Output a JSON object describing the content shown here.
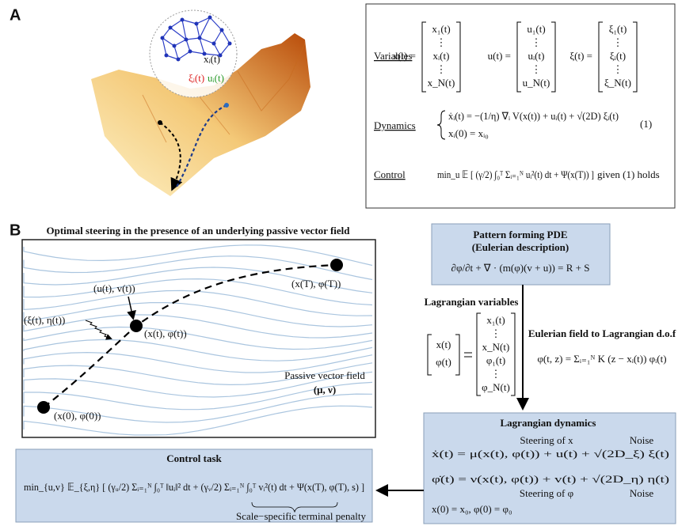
{
  "panel_a": {
    "label": "A",
    "inset": {
      "node": "xᵢ(t)",
      "noise": "ξᵢ(t)",
      "control": "uᵢ(t)"
    },
    "variables_label": "Variables",
    "vectors": [
      {
        "lhs": "x(t) =",
        "entries": [
          "x₁(t)",
          "⋮",
          "xᵢ(t)",
          "⋮",
          "x_N(t)"
        ]
      },
      {
        "lhs": "u(t) =",
        "entries": [
          "u₁(t)",
          "⋮",
          "uᵢ(t)",
          "⋮",
          "u_N(t)"
        ]
      },
      {
        "lhs": "ξ(t) =",
        "entries": [
          "ξ₁(t)",
          "⋮",
          "ξᵢ(t)",
          "⋮",
          "ξ_N(t)"
        ]
      }
    ],
    "dynamics_label": "Dynamics",
    "dynamics": [
      "ẋᵢ(t) = −(1/η) ∇ᵢ V(x(t)) + uᵢ(t) + √(2D) ξᵢ(t)",
      "xᵢ(0) = xᵢ₀"
    ],
    "eq_number": "(1)",
    "control_label": "Control",
    "control": "min_u 𝔼 [ (γ/2) ∫₀ᵀ Σᵢ₌₁ᴺ uᵢ²(t) dt + Ψ(x(T)) ]",
    "control_condition": "given (1) holds"
  },
  "panel_b": {
    "label": "B",
    "title": "Optimal steering in the presence of an underlying passive vector field",
    "field": {
      "steering": "(u(t), v(t))",
      "noise": "(ξ(t), η(t))",
      "current": "(x(t), φ(t))",
      "final": "(x(T), φ(T))",
      "initial": "(x(0), φ(0))",
      "passive_label": "Passive vector field",
      "passive_symbol": "(μ, ν)"
    },
    "pde": {
      "title": [
        "Pattern forming PDE",
        "(Eulerian description)"
      ],
      "equation": "∂φ/∂t + ∇ · (m(φ)(v + u)) = R + S"
    },
    "lagrangian_variables": {
      "title": "Lagrangian variables",
      "lhs": [
        "x(t)",
        "φ(t)"
      ],
      "entries": [
        "x₁(t)",
        "⋮",
        "x_N(t)",
        "φ₁(t)",
        "⋮",
        "φ_N(t)"
      ]
    },
    "eulerian": {
      "title": "Eulerian field to Lagrangian d.o.f",
      "equation": "φ(t, z) = Σᵢ₌₁ᴺ K (z − xᵢ(t)) φᵢ(t)"
    },
    "lagrangian_dynamics": {
      "title": "Lagrangian dynamics",
      "equations": [
        "ẋ(t) = μ(x(t), φ(t)) +  u(t)  + √(2D_ξ) ξ(t)",
        "φ̇(t) = ν(x(t), φ(t)) +  v(t)  + √(2D_η) η(t)",
        "x(0) = x₀,   φ(0) = φ₀"
      ],
      "annotations": [
        "Steering of x",
        "Noise",
        "Steering of φ",
        "Noise"
      ]
    },
    "control_task": {
      "title": "Control task",
      "equation": "min_{u,v} 𝔼_{ξ,η} [ (γᵤ/2) Σᵢ₌₁ᴺ ∫₀ᵀ ‖uᵢ‖² dt + (γᵥ/2) Σᵢ₌₁ᴺ ∫₀ᵀ vᵢ²(t) dt + Ψ(x(T), φ(T), s) ]",
      "penalty": "Scale−specific terminal penalty"
    }
  }
}
